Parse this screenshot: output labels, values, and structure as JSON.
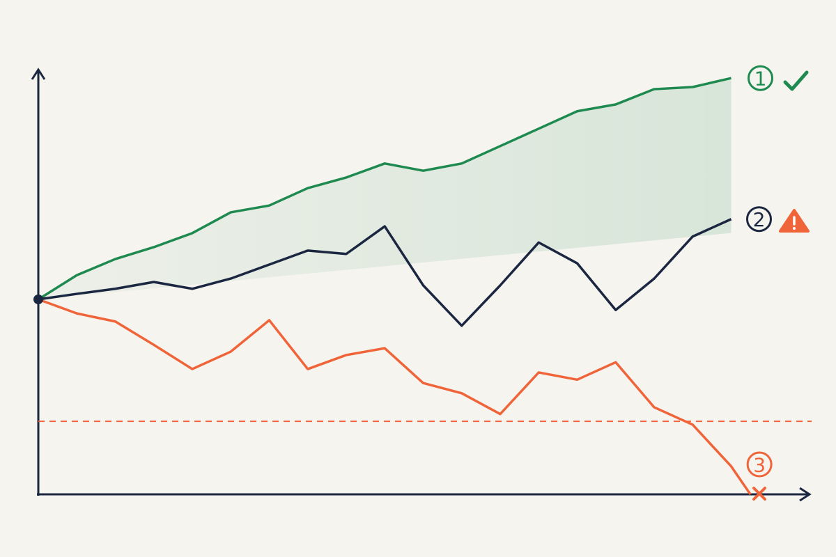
{
  "chart_data": {
    "type": "line",
    "x": [
      0,
      5,
      10,
      15,
      20,
      25,
      30,
      35,
      40,
      45,
      50,
      55,
      60,
      65,
      70,
      75,
      80,
      85,
      90,
      92.5
    ],
    "series": [
      {
        "name": "1",
        "color": "#1e8a50",
        "values": [
          45.9,
          51.6,
          55.4,
          58.2,
          61.5,
          66.4,
          68.0,
          72.1,
          74.6,
          77.9,
          76.2,
          77.9,
          82.0,
          86.1,
          90.2,
          91.8,
          95.4,
          95.9,
          98.0,
          null
        ]
      },
      {
        "name": "2",
        "color": "#1b2640",
        "values": [
          45.9,
          47.2,
          48.4,
          50.0,
          48.4,
          50.8,
          54.1,
          57.4,
          56.6,
          63.1,
          49.2,
          39.7,
          49.2,
          59.3,
          54.4,
          43.4,
          50.8,
          60.7,
          64.8,
          null
        ]
      },
      {
        "name": "3",
        "color": "#f0643a",
        "values": [
          45.9,
          42.6,
          40.7,
          35.2,
          29.5,
          33.6,
          41.0,
          29.5,
          32.8,
          34.4,
          26.2,
          23.8,
          18.9,
          28.7,
          27.0,
          31.1,
          20.5,
          16.4,
          6.6,
          0
        ]
      }
    ],
    "threshold": 17.2,
    "xlim": [
      0,
      100
    ],
    "ylim": [
      0,
      100
    ]
  }
}
